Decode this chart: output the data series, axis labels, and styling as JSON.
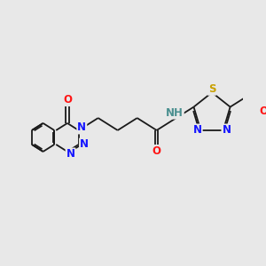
{
  "bg_color": "#e8e8e8",
  "bond_color": "#1a1a1a",
  "N_color": "#1414ff",
  "O_color": "#ff1414",
  "S_color": "#c8a000",
  "H_color": "#4a8f8f",
  "line_width": 1.3,
  "dbo": 0.018,
  "font_size": 8.5,
  "fig_size": [
    3.0,
    3.0
  ],
  "dpi": 100,
  "xlim": [
    0,
    3.0
  ],
  "ylim": [
    0,
    3.0
  ]
}
